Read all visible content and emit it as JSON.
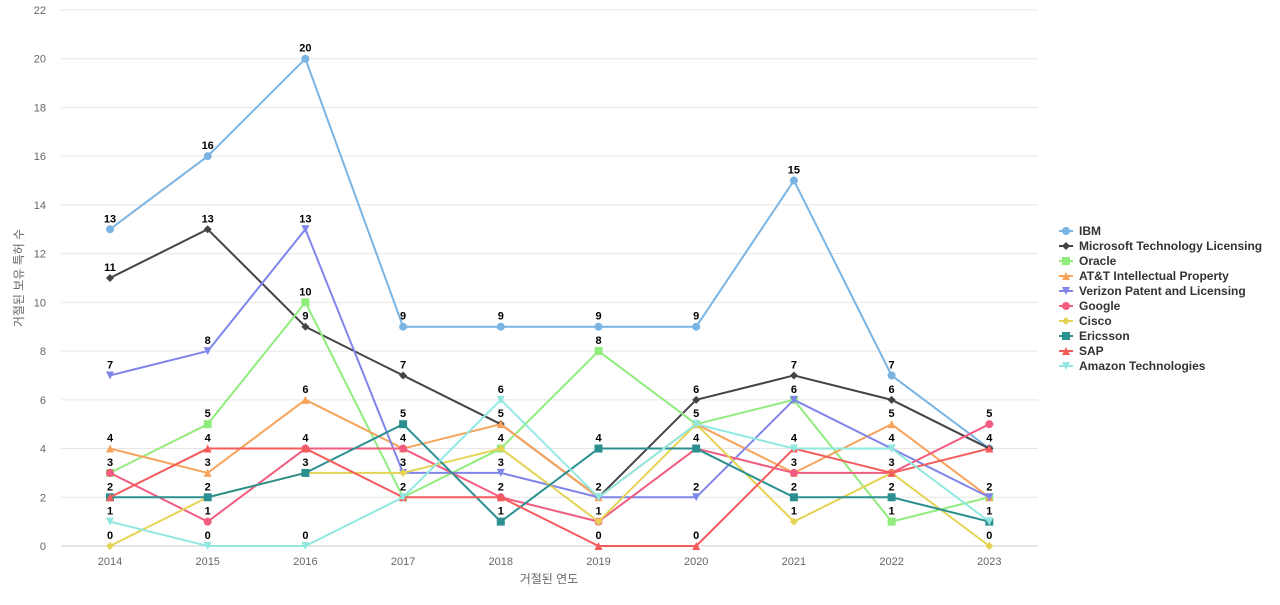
{
  "chart_data": {
    "type": "line",
    "title": "",
    "xlabel": "거절된 연도",
    "ylabel": "거절된 보유 특허 수",
    "x": [
      "2014",
      "2015",
      "2016",
      "2017",
      "2018",
      "2019",
      "2020",
      "2021",
      "2022",
      "2023"
    ],
    "ylim": [
      0,
      22
    ],
    "yticks": [
      "0",
      "2",
      "4",
      "6",
      "8",
      "10",
      "12",
      "14",
      "16",
      "18",
      "20",
      "22"
    ],
    "grid": true,
    "legend_position": "right",
    "series": [
      {
        "name": "IBM",
        "color": "#7ab4e3",
        "marker": "circle",
        "values": [
          13,
          16,
          20,
          9,
          9,
          9,
          9,
          15,
          7,
          4
        ]
      },
      {
        "name": "Microsoft Technology Licensing",
        "color": "#434348",
        "marker": "diamond",
        "values": [
          11,
          13,
          9,
          7,
          5,
          2,
          6,
          7,
          6,
          4
        ]
      },
      {
        "name": "Oracle",
        "color": "#90ed7d",
        "marker": "square",
        "values": [
          3,
          5,
          10,
          2,
          4,
          8,
          5,
          6,
          1,
          2
        ]
      },
      {
        "name": "AT&T Intellectual Property",
        "color": "#f7a35c",
        "marker": "triangle",
        "values": [
          4,
          3,
          6,
          4,
          5,
          2,
          5,
          3,
          5,
          2
        ]
      },
      {
        "name": "Verizon Patent and Licensing",
        "color": "#8085e9",
        "marker": "triangle-down",
        "values": [
          7,
          8,
          13,
          3,
          3,
          2,
          2,
          6,
          4,
          2
        ]
      },
      {
        "name": "Google",
        "color": "#f15c80",
        "marker": "circle",
        "values": [
          3,
          1,
          4,
          4,
          2,
          1,
          4,
          3,
          3,
          5
        ]
      },
      {
        "name": "Cisco",
        "color": "#e4d354",
        "marker": "diamond",
        "values": [
          0,
          2,
          3,
          3,
          4,
          1,
          5,
          1,
          3,
          0
        ]
      },
      {
        "name": "Ericsson",
        "color": "#2b908f",
        "marker": "square",
        "values": [
          2,
          2,
          3,
          5,
          1,
          4,
          4,
          2,
          2,
          1
        ]
      },
      {
        "name": "SAP",
        "color": "#f45b5b",
        "marker": "triangle",
        "values": [
          2,
          4,
          4,
          2,
          2,
          0,
          0,
          4,
          3,
          4
        ]
      },
      {
        "name": "Amazon Technologies",
        "color": "#91e8e1",
        "marker": "triangle-down",
        "values": [
          1,
          0,
          0,
          2,
          6,
          2,
          5,
          4,
          4,
          1
        ]
      }
    ]
  }
}
